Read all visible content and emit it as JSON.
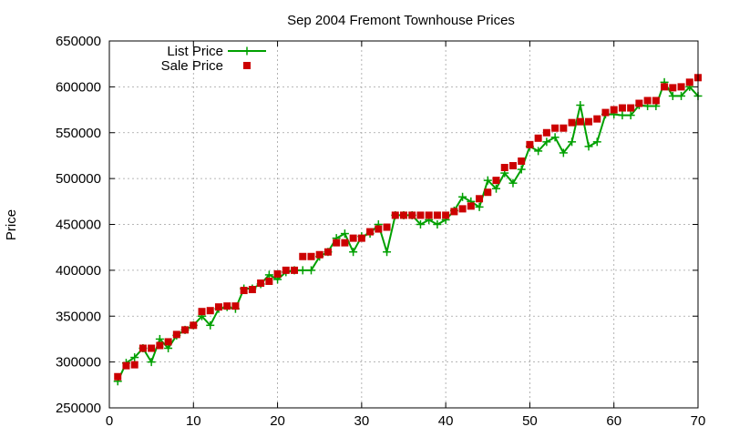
{
  "chart_data": {
    "type": "line",
    "title": "Sep 2004 Fremont Townhouse Prices",
    "xlabel": "",
    "ylabel": "Price",
    "xlim": [
      0,
      70
    ],
    "ylim": [
      250000,
      650000
    ],
    "x_ticks": [
      0,
      10,
      20,
      30,
      40,
      50,
      60,
      70
    ],
    "y_ticks": [
      250000,
      300000,
      350000,
      400000,
      450000,
      500000,
      550000,
      600000,
      650000
    ],
    "grid": true,
    "legend_position": "top-left",
    "series": [
      {
        "name": "List Price",
        "style": "line-with-plus-markers",
        "color": "#00a000",
        "x": [
          1,
          2,
          3,
          4,
          5,
          6,
          7,
          8,
          9,
          10,
          11,
          12,
          13,
          14,
          15,
          16,
          17,
          18,
          19,
          20,
          21,
          22,
          23,
          24,
          25,
          26,
          27,
          28,
          29,
          30,
          31,
          32,
          33,
          34,
          35,
          36,
          37,
          38,
          39,
          40,
          41,
          42,
          43,
          44,
          45,
          46,
          47,
          48,
          49,
          50,
          51,
          52,
          53,
          54,
          55,
          56,
          57,
          58,
          59,
          60,
          61,
          62,
          63,
          64,
          65,
          66,
          67,
          68,
          69,
          70
        ],
        "values": [
          279000,
          299000,
          305000,
          315000,
          300000,
          325000,
          315000,
          329000,
          335000,
          340000,
          350000,
          340000,
          358000,
          360000,
          358000,
          380000,
          380000,
          385000,
          395000,
          390000,
          398000,
          400000,
          400000,
          400000,
          415000,
          420000,
          435000,
          440000,
          420000,
          437000,
          440000,
          450000,
          420000,
          460000,
          460000,
          460000,
          450000,
          455000,
          450000,
          455000,
          465000,
          480000,
          475000,
          469000,
          498000,
          489000,
          506000,
          495000,
          510000,
          535000,
          530000,
          540000,
          545000,
          528000,
          540000,
          580000,
          535000,
          540000,
          570000,
          570000,
          569000,
          569000,
          580000,
          579000,
          579000,
          605000,
          590000,
          590000,
          600000,
          590000
        ]
      },
      {
        "name": "Sale Price",
        "style": "square-markers",
        "color": "#cc0000",
        "x": [
          1,
          2,
          3,
          4,
          5,
          6,
          7,
          8,
          9,
          10,
          11,
          12,
          13,
          14,
          15,
          16,
          17,
          18,
          19,
          20,
          21,
          22,
          23,
          24,
          25,
          26,
          27,
          28,
          29,
          30,
          31,
          32,
          33,
          34,
          35,
          36,
          37,
          38,
          39,
          40,
          41,
          42,
          43,
          44,
          45,
          46,
          47,
          48,
          49,
          50,
          51,
          52,
          53,
          54,
          55,
          56,
          57,
          58,
          59,
          60,
          61,
          62,
          63,
          64,
          65,
          66,
          67,
          68,
          69,
          70
        ],
        "values": [
          284000,
          296000,
          297000,
          315000,
          315000,
          318000,
          322000,
          330000,
          335000,
          340000,
          355000,
          356000,
          360000,
          361000,
          361000,
          378000,
          379000,
          386000,
          388000,
          396000,
          400000,
          400000,
          415000,
          415000,
          417000,
          420000,
          430000,
          430000,
          435000,
          435000,
          442000,
          445000,
          447000,
          460000,
          460000,
          460000,
          460000,
          460000,
          460000,
          460000,
          464000,
          467000,
          470000,
          478000,
          485000,
          498000,
          512000,
          514000,
          519000,
          537000,
          544000,
          550000,
          555000,
          555000,
          561000,
          562000,
          562000,
          565000,
          572000,
          575000,
          577000,
          577000,
          582000,
          585000,
          585000,
          600000,
          599000,
          600000,
          605000,
          610000
        ]
      }
    ]
  }
}
